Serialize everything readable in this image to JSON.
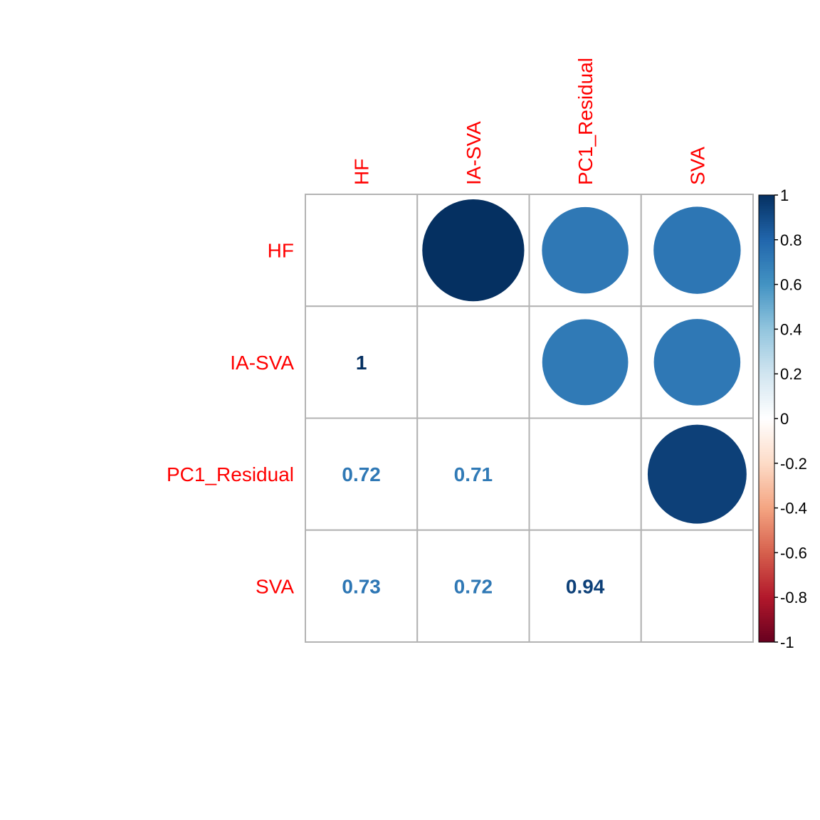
{
  "chart_data": {
    "type": "heatmap",
    "variables": [
      "HF",
      "IA-SVA",
      "PC1_Residual",
      "SVA"
    ],
    "label_color": "#ff0000",
    "grid_color": "#b3b3b3",
    "upper": {
      "method": "circle",
      "cells": [
        {
          "row": 0,
          "col": 1,
          "value": 1
        },
        {
          "row": 0,
          "col": 2,
          "value": 0.72
        },
        {
          "row": 0,
          "col": 3,
          "value": 0.73
        },
        {
          "row": 1,
          "col": 2,
          "value": 0.71
        },
        {
          "row": 1,
          "col": 3,
          "value": 0.72
        },
        {
          "row": 2,
          "col": 3,
          "value": 0.94
        }
      ]
    },
    "lower": {
      "method": "number",
      "cells": [
        {
          "row": 1,
          "col": 0,
          "value": 1,
          "text": "1"
        },
        {
          "row": 2,
          "col": 0,
          "value": 0.72,
          "text": "0.72"
        },
        {
          "row": 2,
          "col": 1,
          "value": 0.71,
          "text": "0.71"
        },
        {
          "row": 3,
          "col": 0,
          "value": 0.73,
          "text": "0.73"
        },
        {
          "row": 3,
          "col": 1,
          "value": 0.72,
          "text": "0.72"
        },
        {
          "row": 3,
          "col": 2,
          "value": 0.94,
          "text": "0.94"
        }
      ]
    },
    "colorbar": {
      "range": [
        -1,
        1
      ],
      "ticks": [
        {
          "value": 1,
          "label": "1"
        },
        {
          "value": 0.8,
          "label": "0.8"
        },
        {
          "value": 0.6,
          "label": "0.6"
        },
        {
          "value": 0.4,
          "label": "0.4"
        },
        {
          "value": 0.2,
          "label": "0.2"
        },
        {
          "value": 0,
          "label": "0"
        },
        {
          "value": -0.2,
          "label": "-0.2"
        },
        {
          "value": -0.4,
          "label": "-0.4"
        },
        {
          "value": -0.6,
          "label": "-0.6"
        },
        {
          "value": -0.8,
          "label": "-0.8"
        },
        {
          "value": -1,
          "label": "-1"
        }
      ],
      "palette": [
        "#67001F",
        "#B2182B",
        "#D6604D",
        "#F4A582",
        "#FDDBC7",
        "#FFFFFF",
        "#D1E5F0",
        "#92C5DE",
        "#4393C3",
        "#2166AC",
        "#053061"
      ]
    }
  }
}
